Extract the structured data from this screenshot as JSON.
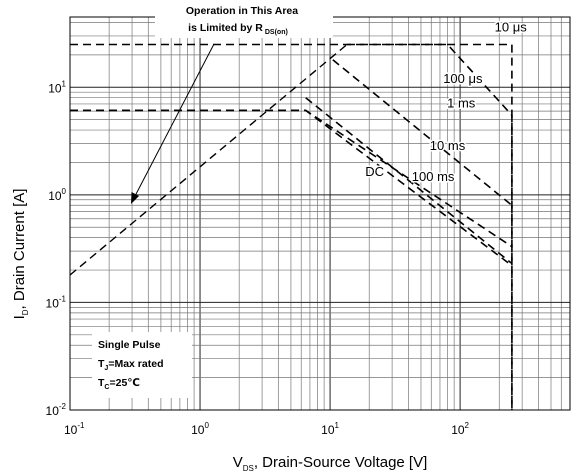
{
  "chart_data": {
    "type": "line",
    "title": "",
    "xlabel": {
      "main": "V",
      "sub": "DS",
      "rest": ", Drain-Source Voltage [V]"
    },
    "ylabel": {
      "main": "I",
      "sub": "D",
      "rest": ", Drain Current [A]"
    },
    "x_scale": "log",
    "y_scale": "log",
    "xlim": [
      0.1,
      700
    ],
    "ylim": [
      0.01,
      45
    ],
    "grid": true,
    "x_ticks": [
      {
        "value": 0.1,
        "base": "10",
        "exp": "-1"
      },
      {
        "value": 1,
        "base": "10",
        "exp": "0"
      },
      {
        "value": 10,
        "base": "10",
        "exp": "1"
      },
      {
        "value": 100,
        "base": "10",
        "exp": "2"
      }
    ],
    "y_ticks": [
      {
        "value": 0.01,
        "base": "10",
        "exp": "-2"
      },
      {
        "value": 0.1,
        "base": "10",
        "exp": "-1"
      },
      {
        "value": 1,
        "base": "10",
        "exp": "0"
      },
      {
        "value": 10,
        "base": "10",
        "exp": "1"
      }
    ],
    "rds_limit": {
      "x": [
        0.1,
        13.5
      ],
      "y": [
        0.18,
        25
      ]
    },
    "series": [
      {
        "name": "10 μs",
        "x": [
          0.1,
          13.5,
          250,
          250
        ],
        "y": [
          25,
          25,
          25,
          0.01
        ]
      },
      {
        "name": "100 μs",
        "x": [
          13.5,
          80,
          250,
          250
        ],
        "y": [
          25,
          25,
          5.5,
          0.01
        ]
      },
      {
        "name": "1 ms",
        "x": [
          10.5,
          250
        ],
        "y": [
          18,
          0.8
        ]
      },
      {
        "name": "10 ms",
        "x": [
          0.1,
          6.5,
          250
        ],
        "y": [
          6.1,
          6.1,
          0.33
        ]
      },
      {
        "name": "100 ms",
        "x": [
          6.5,
          250
        ],
        "y": [
          8,
          0.23
        ]
      },
      {
        "name": "DC",
        "x": [
          0.1,
          6.5,
          250
        ],
        "y": [
          6.1,
          6.1,
          0.22
        ]
      }
    ],
    "series_labels": [
      {
        "text": "10 μs",
        "x": 245,
        "y": 33
      },
      {
        "text": "100 μs",
        "x": 105,
        "y": 11
      },
      {
        "text": "1 ms",
        "x": 102,
        "y": 6.5
      },
      {
        "text": "10 ms",
        "x": 80,
        "y": 2.6
      },
      {
        "text": "100 ms",
        "x": 62,
        "y": 1.35
      },
      {
        "text": "DC",
        "x": 22,
        "y": 1.5
      }
    ],
    "annotations": {
      "rds_note_line1": "Operation in This Area",
      "rds_note_line2_main": "is Limited by R",
      "rds_note_line2_sub": "DS(on)",
      "conditions": [
        {
          "main": "Single Pulse",
          "sub": "",
          "rest": ""
        },
        {
          "main": "T",
          "sub": "J",
          "rest": "=Max rated"
        },
        {
          "main": "T",
          "sub": "C",
          "rest": "=25℃"
        }
      ]
    }
  }
}
